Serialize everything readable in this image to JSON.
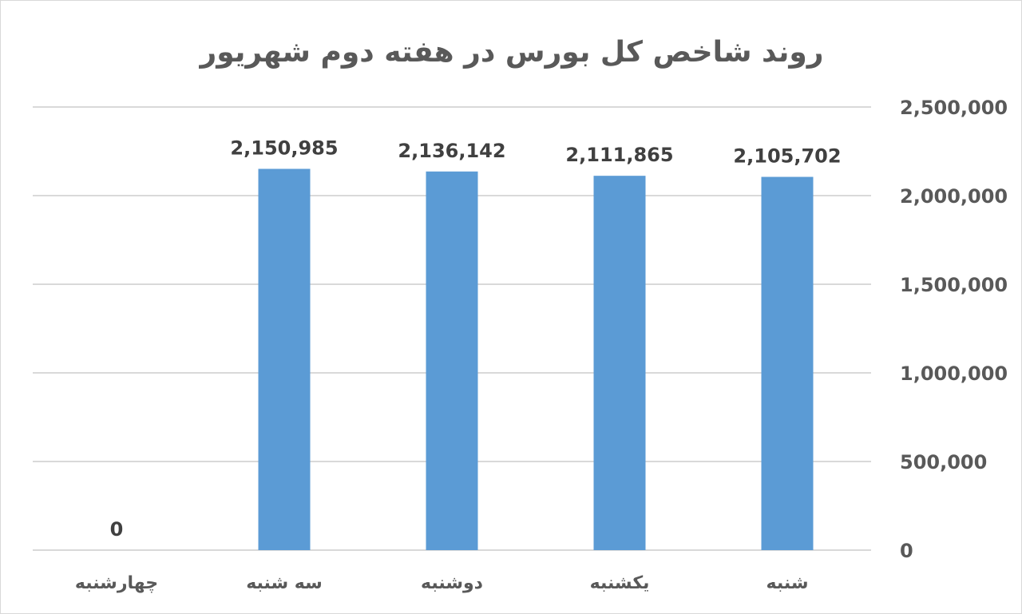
{
  "chart_data": {
    "type": "bar",
    "title": "روند شاخص کل بورس در هفته دوم شهریور",
    "categories": [
      "شنبه",
      "یکشنبه",
      "دوشنبه",
      "سه شنبه",
      "چهارشنبه"
    ],
    "values": [
      2105702,
      2111865,
      2136142,
      2150985,
      0
    ],
    "data_labels": [
      "2,105,702",
      "2,111,865",
      "2,136,142",
      "2,150,985",
      "0"
    ],
    "y_ticks": [
      "0",
      "500,000",
      "1,000,000",
      "1,500,000",
      "2,000,000",
      "2,500,000"
    ],
    "ylim": [
      0,
      2500000
    ],
    "y_axis_position": "right",
    "x_direction": "right-to-left",
    "grid": true,
    "bar_color": "#5b9bd5",
    "xlabel": "",
    "ylabel": ""
  }
}
